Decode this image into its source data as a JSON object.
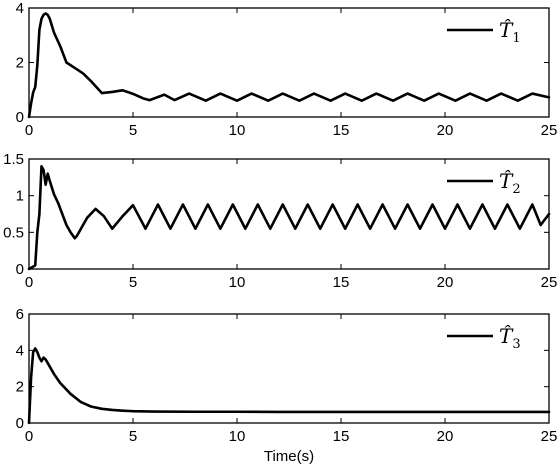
{
  "chart_data": [
    {
      "type": "line",
      "legend": {
        "symbol": "T̂",
        "subscript": "1",
        "placement": "top-right"
      },
      "xlim": [
        0,
        25
      ],
      "ylim": [
        0,
        4
      ],
      "xticks": [
        0,
        5,
        10,
        15,
        20,
        25
      ],
      "yticks": [
        0,
        2,
        4
      ],
      "xlabel": "",
      "series": [
        {
          "x": [
            0,
            0.1,
            0.2,
            0.3,
            0.4,
            0.5,
            0.6,
            0.7,
            0.8,
            0.9,
            1.0,
            1.2,
            1.5,
            1.8,
            2.2,
            2.6,
            3.0,
            3.5,
            4.0,
            4.5,
            5.0,
            5.5,
            5.8,
            6.5,
            7.0,
            7.7,
            8.5,
            9.2,
            10.0,
            10.7,
            11.5,
            12.2,
            13.0,
            13.7,
            14.5,
            15.2,
            16.0,
            16.7,
            17.5,
            18.2,
            19.0,
            19.7,
            20.5,
            21.2,
            22.0,
            22.7,
            23.5,
            24.2,
            25.0
          ],
          "y": [
            0.0,
            0.5,
            0.9,
            1.1,
            1.9,
            3.2,
            3.6,
            3.75,
            3.8,
            3.75,
            3.6,
            3.1,
            2.6,
            2.0,
            1.8,
            1.6,
            1.3,
            0.88,
            0.92,
            0.98,
            0.85,
            0.68,
            0.62,
            0.82,
            0.62,
            0.86,
            0.6,
            0.86,
            0.6,
            0.86,
            0.6,
            0.86,
            0.6,
            0.86,
            0.6,
            0.86,
            0.6,
            0.86,
            0.6,
            0.86,
            0.6,
            0.86,
            0.6,
            0.86,
            0.6,
            0.86,
            0.6,
            0.86,
            0.72
          ]
        }
      ]
    },
    {
      "type": "line",
      "legend": {
        "symbol": "T̂",
        "subscript": "2",
        "placement": "top-right"
      },
      "xlim": [
        0,
        25
      ],
      "ylim": [
        0,
        1.5
      ],
      "xticks": [
        0,
        5,
        10,
        15,
        20,
        25
      ],
      "yticks": [
        0,
        0.5,
        1,
        1.5
      ],
      "xlabel": "",
      "series": [
        {
          "x": [
            0,
            0.3,
            0.4,
            0.5,
            0.6,
            0.7,
            0.8,
            0.9,
            1.0,
            1.2,
            1.4,
            1.6,
            1.8,
            2.0,
            2.2,
            2.3,
            2.5,
            2.8,
            3.2,
            3.6,
            4.0,
            4.5,
            5.0,
            5.6,
            6.2,
            6.8,
            7.4,
            8.0,
            8.6,
            9.2,
            9.8,
            10.4,
            11.0,
            11.6,
            12.2,
            12.8,
            13.4,
            14.0,
            14.6,
            15.2,
            15.8,
            16.4,
            17.0,
            17.6,
            18.2,
            18.8,
            19.4,
            20.0,
            20.6,
            21.2,
            21.8,
            22.4,
            23.0,
            23.6,
            24.2,
            24.6,
            25.0
          ],
          "y": [
            0.0,
            0.05,
            0.5,
            0.75,
            1.4,
            1.35,
            1.15,
            1.3,
            1.2,
            1.02,
            0.9,
            0.75,
            0.6,
            0.5,
            0.42,
            0.45,
            0.55,
            0.7,
            0.82,
            0.72,
            0.55,
            0.72,
            0.87,
            0.55,
            0.88,
            0.55,
            0.88,
            0.55,
            0.88,
            0.55,
            0.88,
            0.55,
            0.88,
            0.55,
            0.88,
            0.55,
            0.88,
            0.55,
            0.88,
            0.55,
            0.88,
            0.55,
            0.88,
            0.55,
            0.88,
            0.55,
            0.88,
            0.55,
            0.88,
            0.55,
            0.88,
            0.55,
            0.88,
            0.55,
            0.88,
            0.6,
            0.75
          ]
        }
      ]
    },
    {
      "type": "line",
      "legend": {
        "symbol": "T̂",
        "subscript": "3",
        "placement": "top-right"
      },
      "xlim": [
        0,
        25
      ],
      "ylim": [
        0,
        6
      ],
      "xticks": [
        0,
        5,
        10,
        15,
        20,
        25
      ],
      "yticks": [
        0,
        2,
        4,
        6
      ],
      "xlabel": "Time(s)",
      "series": [
        {
          "x": [
            0,
            0.1,
            0.2,
            0.3,
            0.4,
            0.5,
            0.6,
            0.7,
            0.8,
            0.9,
            1.0,
            1.2,
            1.5,
            2.0,
            2.5,
            3.0,
            3.5,
            4.0,
            4.5,
            5.0,
            6.0,
            8.0,
            10.0,
            12.0,
            15.0,
            18.0,
            20.0,
            22.0,
            25.0
          ],
          "y": [
            0.0,
            2.5,
            3.9,
            4.1,
            3.9,
            3.6,
            3.4,
            3.6,
            3.5,
            3.3,
            3.1,
            2.7,
            2.2,
            1.6,
            1.15,
            0.9,
            0.78,
            0.72,
            0.68,
            0.65,
            0.63,
            0.62,
            0.62,
            0.61,
            0.61,
            0.61,
            0.61,
            0.61,
            0.61
          ]
        }
      ]
    }
  ]
}
